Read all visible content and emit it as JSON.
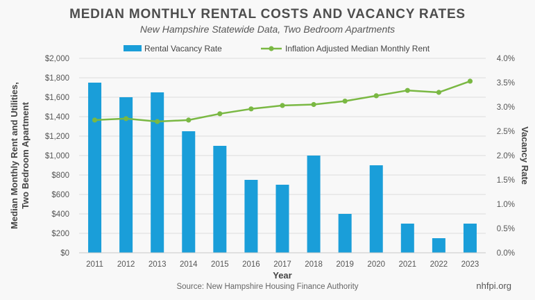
{
  "header": {
    "title": "MEDIAN MONTHLY RENTAL COSTS AND VACANCY RATES",
    "subtitle": "New Hampshire Statewide Data, Two Bedroom Apartments"
  },
  "footer": {
    "source": "Source: New Hampshire Housing Finance Authority",
    "brand": "nhfpi.org"
  },
  "colors": {
    "bar": "#1a9ed9",
    "line": "#7ab843",
    "grid": "#dcdcdc",
    "axis_text": "#555555"
  },
  "chart_data": {
    "type": "bar+line",
    "title": "MEDIAN MONTHLY RENTAL COSTS AND VACANCY RATES",
    "subtitle": "New Hampshire Statewide Data, Two Bedroom Apartments",
    "xlabel": "Year",
    "ylabel_left": "Median Monthly Rent and Utilities, Two Bedroom Apartment",
    "ylabel_right": "Vacancy Rate",
    "categories": [
      "2011",
      "2012",
      "2013",
      "2014",
      "2015",
      "2016",
      "2017",
      "2018",
      "2019",
      "2020",
      "2021",
      "2022",
      "2023"
    ],
    "left_axis": {
      "range": [
        0,
        2000
      ],
      "ticks": [
        0,
        200,
        400,
        600,
        800,
        1000,
        1200,
        1400,
        1600,
        1800,
        2000
      ],
      "tick_labels": [
        "$0",
        "$200",
        "$400",
        "$600",
        "$800",
        "$1,000",
        "$1,200",
        "$1,400",
        "$1,600",
        "$1,800",
        "$2,000"
      ]
    },
    "right_axis": {
      "range": [
        0,
        4.0
      ],
      "ticks": [
        0,
        0.5,
        1.0,
        1.5,
        2.0,
        2.5,
        3.0,
        3.5,
        4.0
      ],
      "tick_labels": [
        "0.0%",
        "0.5%",
        "1.0%",
        "1.5%",
        "2.0%",
        "2.5%",
        "3.0%",
        "3.5%",
        "4.0%"
      ]
    },
    "series": [
      {
        "name": "Rental Vacancy Rate",
        "type": "bar",
        "axis": "right",
        "values": [
          3.5,
          3.2,
          3.3,
          2.5,
          2.2,
          1.5,
          1.4,
          2.0,
          0.8,
          1.8,
          0.6,
          0.3,
          0.6
        ]
      },
      {
        "name": "Inflation Adjusted Median Monthly Rent",
        "type": "line",
        "axis": "left",
        "values": [
          1365,
          1380,
          1350,
          1365,
          1430,
          1480,
          1515,
          1525,
          1560,
          1615,
          1670,
          1650,
          1765
        ]
      }
    ],
    "legend": "top-center",
    "grid": true
  }
}
